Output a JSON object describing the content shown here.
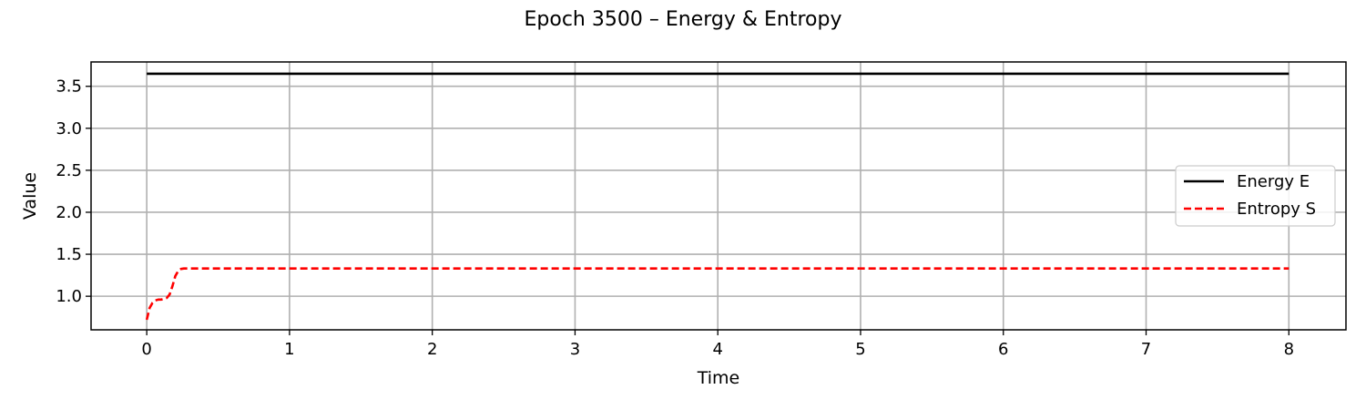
{
  "chart_data": {
    "type": "line",
    "title": "Epoch 3500 – Energy & Entropy",
    "xlabel": "Time",
    "ylabel": "Value",
    "xlim": [
      -0.39,
      8.4
    ],
    "ylim": [
      0.6,
      3.79
    ],
    "xticks": [
      0,
      1,
      2,
      3,
      4,
      5,
      6,
      7,
      8
    ],
    "xtick_labels": [
      "0",
      "1",
      "2",
      "3",
      "4",
      "5",
      "6",
      "7",
      "8"
    ],
    "yticks": [
      1.0,
      1.5,
      2.0,
      2.5,
      3.0,
      3.5
    ],
    "ytick_labels": [
      "1.0",
      "1.5",
      "2.0",
      "2.5",
      "3.0",
      "3.5"
    ],
    "grid": true,
    "legend_position": "center-right",
    "series": [
      {
        "name": "Energy E",
        "color": "#000000",
        "style": "solid",
        "x": [
          0,
          1,
          2,
          3,
          4,
          5,
          6,
          7,
          8
        ],
        "y": [
          3.65,
          3.65,
          3.65,
          3.65,
          3.65,
          3.65,
          3.65,
          3.65,
          3.65
        ]
      },
      {
        "name": "Entropy S",
        "color": "#ff0000",
        "style": "dashed",
        "x": [
          0,
          0.02,
          0.04,
          0.06,
          0.08,
          0.1,
          0.12,
          0.14,
          0.16,
          0.18,
          0.2,
          0.22,
          0.24,
          0.26,
          0.3,
          0.4,
          1,
          2,
          3,
          4,
          5,
          6,
          7,
          8
        ],
        "y": [
          0.72,
          0.86,
          0.92,
          0.95,
          0.96,
          0.96,
          0.97,
          0.98,
          1.02,
          1.12,
          1.24,
          1.3,
          1.325,
          1.33,
          1.33,
          1.33,
          1.33,
          1.33,
          1.33,
          1.33,
          1.33,
          1.33,
          1.33,
          1.33
        ]
      }
    ]
  }
}
